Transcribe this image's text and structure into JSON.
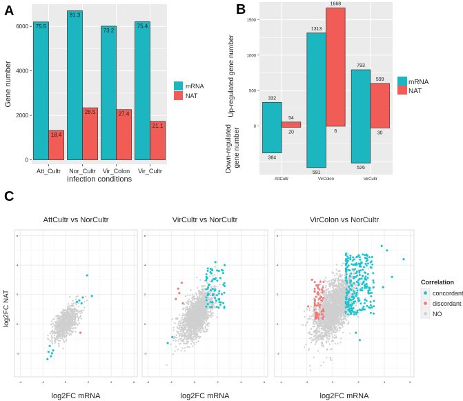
{
  "panels": {
    "a": "A",
    "b": "B",
    "c": "C"
  },
  "colors": {
    "mRNA": "#1BB6BF",
    "NAT": "#F25C57",
    "concordant": "#1BC5D0",
    "discordant": "#F07B78",
    "none": "#CFCFCF",
    "panel_bg": "#EBEBEB"
  },
  "chart_data": [
    {
      "id": "A",
      "type": "bar",
      "xlabel": "Infection conditions",
      "ylabel": "Gene number",
      "categories": [
        "Att_Cultr",
        "Nor_Cultr",
        "Vir_Colon",
        "Vir_Cultr"
      ],
      "series": [
        {
          "name": "mRNA",
          "values": [
            6200,
            6700,
            6010,
            6210
          ],
          "labels": [
            "75.5",
            "81.3",
            "73.2",
            "75.4"
          ]
        },
        {
          "name": "NAT",
          "values": [
            1320,
            2340,
            2260,
            1730
          ],
          "labels": [
            "18.4",
            "28.5",
            "27.4",
            "21.1"
          ]
        }
      ],
      "yticks": [
        0,
        2000,
        4000,
        6000
      ],
      "ylim": [
        -200,
        7000
      ],
      "legend": {
        "position": "right",
        "entries": [
          "mRNA",
          "NAT"
        ]
      }
    },
    {
      "id": "B",
      "type": "bar",
      "ylabel_up": "Up-regulated gene number",
      "ylabel_down": "Down-regulated gene number",
      "categories": [
        "AttCultr",
        "VirColon",
        "VirCultr"
      ],
      "series": [
        {
          "name": "mRNA",
          "up": [
            332,
            1313,
            793
          ],
          "down": [
            384,
            591,
            526
          ]
        },
        {
          "name": "NAT",
          "up": [
            54,
            1668,
            599
          ],
          "down": [
            20,
            6,
            30
          ]
        }
      ],
      "yticks": [
        0,
        500,
        1000,
        1500
      ],
      "ylim": [
        -690,
        1750
      ],
      "legend": {
        "position": "right",
        "entries": [
          "mRNA",
          "NAT"
        ]
      }
    },
    {
      "id": "C",
      "type": "scatter",
      "ylabel": "log2FC NAT",
      "legend": {
        "title": "Correlation",
        "entries": [
          "concordant",
          "discordant",
          "NO"
        ]
      },
      "xticks": [
        -4,
        -2,
        0,
        2,
        4,
        6
      ],
      "yticks": [
        -2,
        0,
        2,
        4,
        6
      ],
      "xlim": [
        -4.5,
        6.3
      ],
      "ylim": [
        -3.6,
        6.4
      ],
      "subplots": [
        {
          "title": "AttCultr vs NorCultr",
          "xlabel": "log2FC mRNA",
          "background": {
            "n": 900,
            "cx": 0.0,
            "cy": 0.1,
            "sx": 0.55,
            "sy": 0.6,
            "rho": 0.6
          },
          "concordant": [
            [
              1.9,
              3.3
            ],
            [
              2.3,
              1.9
            ],
            [
              1.5,
              1.8
            ],
            [
              1.2,
              1.6
            ],
            [
              1.0,
              1.5
            ],
            [
              1.4,
              1.4
            ],
            [
              -1.1,
              -1.8
            ],
            [
              -1.4,
              -1.5
            ],
            [
              -1.5,
              -1.9
            ],
            [
              -1.3,
              -2.2
            ],
            [
              -1.6,
              -2.4
            ],
            [
              -1.2,
              -2.0
            ]
          ],
          "discordant": [
            [
              1.3,
              -0.6
            ]
          ]
        },
        {
          "title": "VirCultr vs NorCultr",
          "xlabel": "log2FC mRNA",
          "background": {
            "n": 1800,
            "cx": 0.2,
            "cy": 0.6,
            "sx": 0.7,
            "sy": 0.85,
            "rho": 0.62
          },
          "concordant_gen": {
            "n": 70,
            "xmin": 1.0,
            "xmax": 2.6,
            "ymin": 1.0,
            "ymax": 3.8,
            "seed": 7
          },
          "concordant": [
            [
              1.8,
              4.2
            ],
            [
              2.6,
              4.0
            ],
            [
              2.1,
              3.6
            ],
            [
              -1.9,
              -0.9
            ],
            [
              -2.3,
              -1.3
            ]
          ],
          "discordant": [
            [
              -1.3,
              2.1
            ],
            [
              -1.1,
              2.8
            ],
            [
              -1.6,
              1.7
            ],
            [
              -1.0,
              1.4
            ],
            [
              -1.4,
              2.4
            ]
          ]
        },
        {
          "title": "VirColon vs NorCultr",
          "xlabel": "log2FC mRNA",
          "background": {
            "n": 2400,
            "cx": 0.1,
            "cy": 1.1,
            "sx": 0.75,
            "sy": 1.05,
            "rho": 0.55
          },
          "concordant_gen": {
            "n": 260,
            "xmin": 1.0,
            "xmax": 3.2,
            "ymin": 0.6,
            "ymax": 4.8,
            "seed": 11
          },
          "discordant_gen": {
            "n": 70,
            "xmin": -1.4,
            "xmax": -0.7,
            "ymin": 0.3,
            "ymax": 2.9,
            "seed": 23
          },
          "concordant": [
            [
              4.2,
              5.0
            ],
            [
              3.8,
              5.3
            ],
            [
              5.5,
              4.4
            ],
            [
              4.6,
              3.2
            ],
            [
              3.9,
              2.5
            ],
            [
              2.1,
              -1.1
            ],
            [
              1.8,
              -0.6
            ]
          ],
          "discordant": [
            [
              -1.9,
              1.2
            ],
            [
              -1.6,
              3.0
            ]
          ]
        }
      ]
    }
  ]
}
